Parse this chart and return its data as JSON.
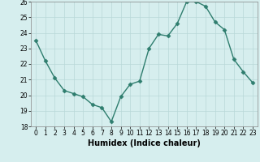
{
  "x": [
    0,
    1,
    2,
    3,
    4,
    5,
    6,
    7,
    8,
    9,
    10,
    11,
    12,
    13,
    14,
    15,
    16,
    17,
    18,
    19,
    20,
    21,
    22,
    23
  ],
  "y": [
    23.5,
    22.2,
    21.1,
    20.3,
    20.1,
    19.9,
    19.4,
    19.2,
    18.3,
    19.9,
    20.7,
    20.9,
    23.0,
    23.9,
    23.8,
    24.6,
    26.0,
    26.0,
    25.7,
    24.7,
    24.2,
    22.3,
    21.5,
    20.8
  ],
  "xlabel": "Humidex (Indice chaleur)",
  "ylim": [
    18,
    26
  ],
  "yticks": [
    18,
    19,
    20,
    21,
    22,
    23,
    24,
    25,
    26
  ],
  "line_color": "#2e7d6e",
  "marker_color": "#2e7d6e",
  "bg_color": "#d6eeee",
  "grid_color": "#b8d8d8",
  "xlabel_fontsize": 7,
  "tick_fontsize": 5.5,
  "marker_size": 2.5,
  "linewidth": 1.0
}
